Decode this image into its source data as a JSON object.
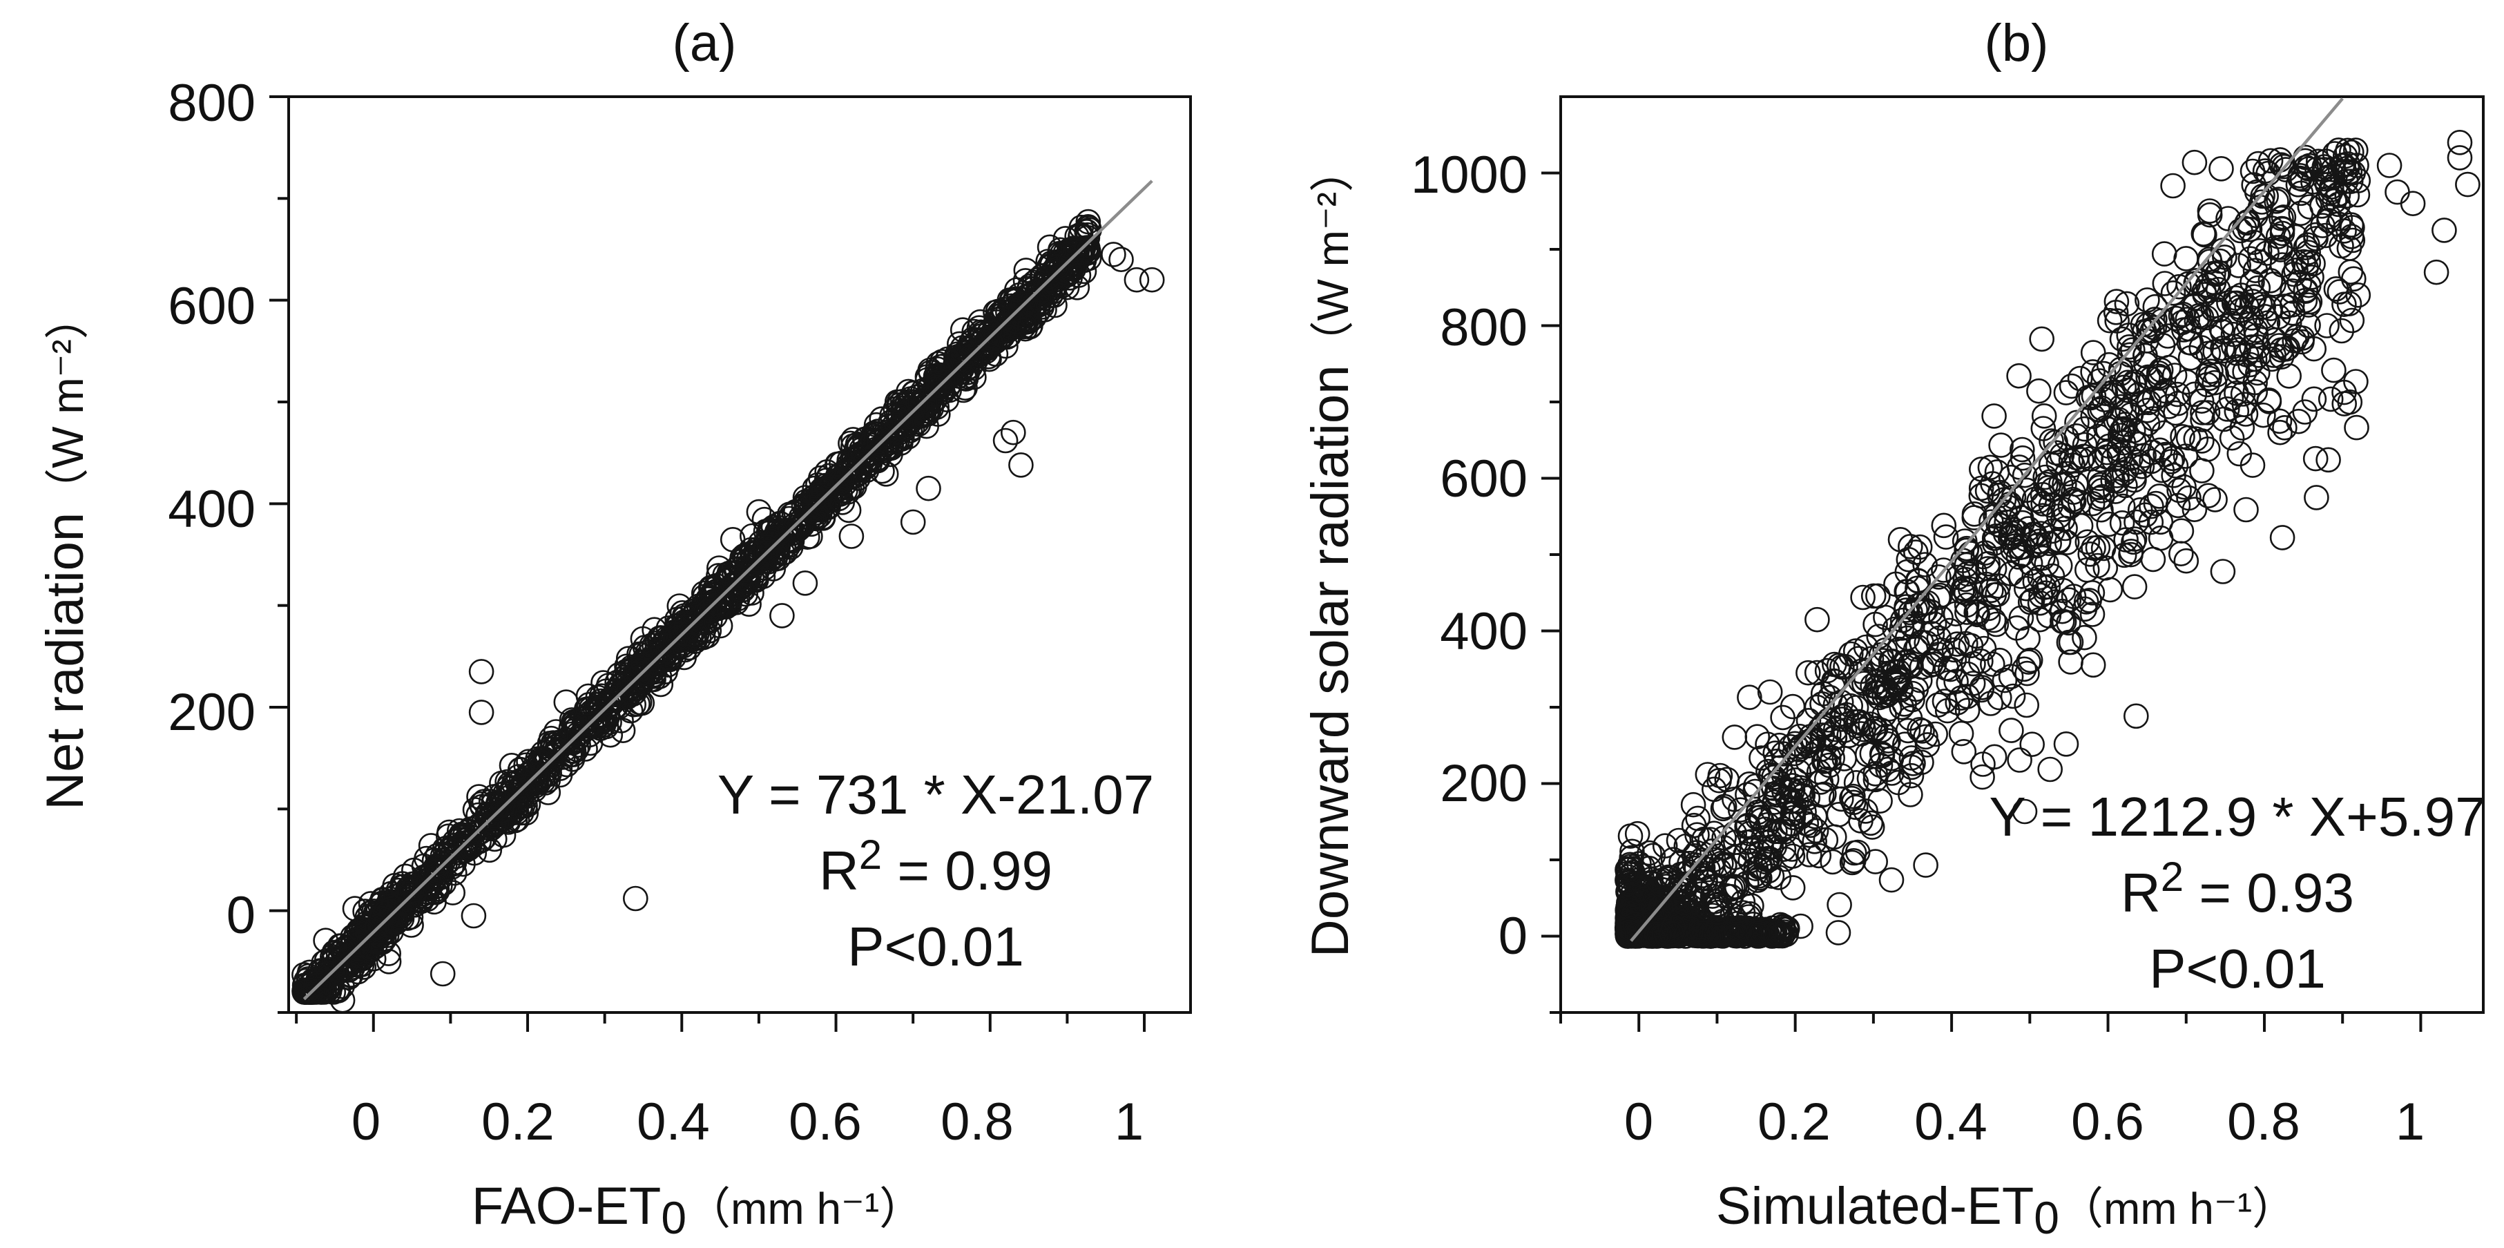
{
  "chart_data": [
    {
      "id": "a",
      "type": "scatter",
      "title": "(a)",
      "xlabel": "FAO-ET",
      "xlabel_sub": "0",
      "xlabel_unit": "（mm h⁻¹）",
      "ylabel": "Net radiation",
      "ylabel_unit": "（W m⁻²）",
      "xlim": [
        -0.11,
        1.06
      ],
      "ylim": [
        -100,
        800
      ],
      "xticks": [
        0,
        0.2,
        0.4,
        0.6,
        0.8,
        1
      ],
      "xtick_labels": [
        "0",
        "0.2",
        "0.4",
        "0.6",
        "0.8",
        "1"
      ],
      "yticks": [
        0,
        200,
        400,
        600,
        800
      ],
      "ytick_labels": [
        "0",
        "200",
        "400",
        "600",
        "800"
      ],
      "fit": {
        "slope": 731,
        "intercept": -21.07,
        "x_range": [
          -0.09,
          1.01
        ]
      },
      "annotation": {
        "equation": "Y = 731 * X-21.07",
        "r2_prefix": "R",
        "r2_sup": "2",
        "r2_value": " = 0.99",
        "p": "P<0.01"
      },
      "generated_points": {
        "n": 1700,
        "seed": 11,
        "spread": 12
      },
      "outliers": [
        [
          0.14,
          235
        ],
        [
          0.14,
          195
        ],
        [
          0.34,
          12
        ],
        [
          0.13,
          -5
        ],
        [
          0.09,
          -62
        ],
        [
          0.83,
          470
        ],
        [
          0.84,
          438
        ],
        [
          0.82,
          462
        ],
        [
          0.7,
          382
        ],
        [
          0.72,
          415
        ],
        [
          0.56,
          322
        ],
        [
          0.53,
          290
        ],
        [
          0.62,
          368
        ],
        [
          0.99,
          620
        ],
        [
          1.01,
          620
        ],
        [
          0.96,
          645
        ],
        [
          0.97,
          640
        ],
        [
          0.45,
          280
        ],
        [
          0.5,
          392
        ],
        [
          0.66,
          432
        ],
        [
          -0.04,
          -88
        ],
        [
          -0.02,
          -60
        ],
        [
          0.02,
          -50
        ],
        [
          0.25,
          205
        ]
      ]
    },
    {
      "id": "b",
      "type": "scatter",
      "title": "(b)",
      "xlabel": "Simulated-ET",
      "xlabel_sub": "0",
      "xlabel_unit": "（mm h⁻¹）",
      "ylabel": "Downward solar radiation",
      "ylabel_unit": "（W m⁻²）",
      "xlim": [
        -0.1,
        1.08
      ],
      "ylim": [
        -100,
        1100
      ],
      "xticks": [
        0,
        0.2,
        0.4,
        0.6,
        0.8,
        1
      ],
      "xtick_labels": [
        "0",
        "0.2",
        "0.4",
        "0.6",
        "0.8",
        "1"
      ],
      "yticks": [
        0,
        200,
        400,
        600,
        800,
        1000
      ],
      "ytick_labels": [
        "0",
        "200",
        "400",
        "600",
        "800",
        "1000"
      ],
      "fit": {
        "slope": 1212.9,
        "intercept": 5.97,
        "x_range": [
          -0.01,
          0.9
        ]
      },
      "annotation": {
        "equation": "Y = 1212.9 * X+5.97",
        "r2_prefix": "R",
        "r2_sup": "2",
        "r2_value": " = 0.93",
        "p": "P<0.01"
      },
      "generated_points": {
        "n": 1800,
        "seed": 29,
        "spread": 70
      },
      "outliers": [
        [
          1.05,
          1040
        ],
        [
          1.05,
          1020
        ],
        [
          1.06,
          985
        ],
        [
          1.03,
          925
        ],
        [
          1.02,
          870
        ],
        [
          0.82,
          660
        ],
        [
          0.72,
          610
        ],
        [
          0.58,
          450
        ],
        [
          0.55,
          385
        ],
        [
          0.35,
          310
        ],
        [
          0.45,
          305
        ],
        [
          0.19,
          10
        ],
        [
          0.25,
          130
        ],
        [
          0.28,
          110
        ],
        [
          0.97,
          975
        ],
        [
          0.96,
          1010
        ],
        [
          0.92,
          990
        ],
        [
          0.88,
          800
        ],
        [
          0.92,
          840
        ],
        [
          0.99,
          960
        ]
      ]
    }
  ]
}
